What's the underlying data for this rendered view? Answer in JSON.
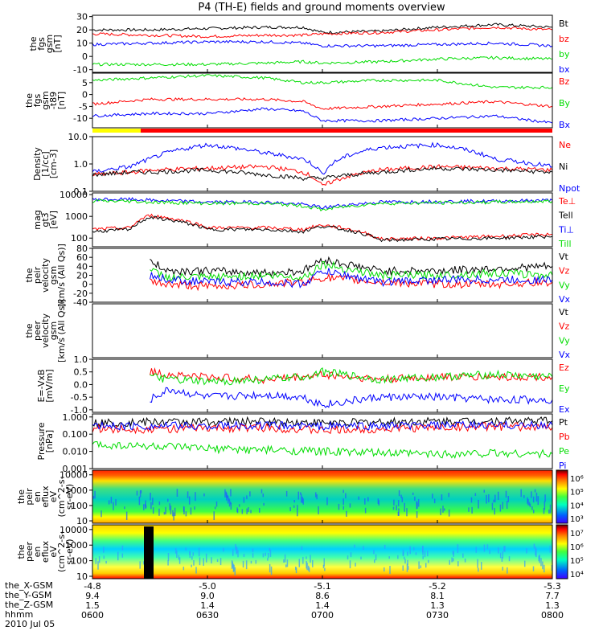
{
  "title": "P4 (TH-E) fields and ground moments overview",
  "date": "2010 Jul 05",
  "xaxis": {
    "row_labels": [
      "the_X-GSM",
      "the_Y-GSM",
      "the_Z-GSM",
      "hhmm"
    ],
    "ticks": [
      {
        "x": "-4.8",
        "y": "9.4",
        "z": "1.5",
        "t": "0600"
      },
      {
        "x": "-5.0",
        "y": "9.0",
        "z": "1.4",
        "t": "0630"
      },
      {
        "x": "-5.1",
        "y": "8.6",
        "z": "1.4",
        "t": "0700"
      },
      {
        "x": "-5.2",
        "y": "8.1",
        "z": "1.3",
        "t": "0730"
      },
      {
        "x": "-5.3",
        "y": "7.7",
        "z": "1.3",
        "t": "0800"
      }
    ]
  },
  "colors": {
    "black": "#000000",
    "red": "#ff0000",
    "green": "#00dd00",
    "blue": "#0000ff",
    "yellow": "#ffff00"
  },
  "chart_data": [
    {
      "type": "line",
      "ylabel": [
        "the",
        "fgs",
        "gsm",
        "[nT]"
      ],
      "yticks": [
        "30",
        "20",
        "10",
        "0",
        "-10"
      ],
      "ylim": [
        -12,
        31
      ],
      "x": [
        "0600",
        "0615",
        "0630",
        "0645",
        "0655",
        "0700",
        "0715",
        "0730",
        "0745",
        "0800"
      ],
      "series": [
        {
          "name": "Bt",
          "color": "#000000",
          "values": [
            20,
            20,
            21,
            22,
            22,
            18,
            19,
            22,
            24,
            22
          ]
        },
        {
          "name": "bz",
          "color": "#ff0000",
          "values": [
            17,
            16,
            15,
            16,
            16,
            17,
            18,
            20,
            22,
            20
          ]
        },
        {
          "name": "by",
          "color": "#00dd00",
          "values": [
            -6,
            -6,
            -6,
            -5,
            -4,
            -5,
            -4,
            -2,
            -1,
            -2
          ]
        },
        {
          "name": "bx",
          "color": "#0000ff",
          "values": [
            9,
            10,
            11,
            11,
            10,
            8,
            8,
            9,
            10,
            8
          ]
        }
      ]
    },
    {
      "type": "line",
      "ylabel": [
        "the",
        "fgs",
        "gsm",
        "-t89",
        "[nT]"
      ],
      "yticks": [
        "5",
        "0",
        "-5",
        "-10"
      ],
      "ylim": [
        -14,
        9
      ],
      "x": [
        "0600",
        "0615",
        "0630",
        "0645",
        "0655",
        "0700",
        "0715",
        "0730",
        "0745",
        "0800"
      ],
      "series": [
        {
          "name": "Bz",
          "color": "#ff0000",
          "values": [
            -4,
            -2,
            -2,
            -2,
            -3,
            -6,
            -5,
            -4,
            -3,
            -5
          ]
        },
        {
          "name": "By",
          "color": "#00dd00",
          "values": [
            6,
            7,
            8,
            7,
            5,
            5,
            6,
            6,
            3,
            3
          ]
        },
        {
          "name": "Bx",
          "color": "#0000ff",
          "values": [
            -9,
            -8,
            -8,
            -6,
            -7,
            -11,
            -11,
            -10,
            -9,
            -12
          ]
        }
      ]
    },
    {
      "type": "line",
      "log": true,
      "ylabel": [
        "Density",
        "[1/cc]",
        "[cm-3]"
      ],
      "yticks": [
        "10.0",
        "1.0",
        "0.1"
      ],
      "ylim": [
        0.1,
        10
      ],
      "x": [
        "0600",
        "0610",
        "0615",
        "0630",
        "0645",
        "0655",
        "0700",
        "0715",
        "0730",
        "0745",
        "0800"
      ],
      "series": [
        {
          "name": "Ne",
          "color": "#ff0000",
          "values": [
            0.4,
            0.5,
            0.6,
            0.7,
            0.8,
            0.5,
            0.15,
            0.6,
            0.8,
            0.7,
            0.6
          ]
        },
        {
          "name": "Ni",
          "color": "#000000",
          "values": [
            0.4,
            0.5,
            0.5,
            0.6,
            0.4,
            0.3,
            0.3,
            0.5,
            0.7,
            0.6,
            0.5
          ]
        },
        {
          "name": "Npot",
          "color": "#0000ff",
          "values": [
            0.5,
            0.8,
            1.5,
            5,
            2.5,
            1.5,
            0.4,
            4,
            5,
            1.5,
            0.8
          ]
        }
      ]
    },
    {
      "type": "line",
      "log": true,
      "ylabel": [
        "mag",
        "gt3",
        "[eV]"
      ],
      "yticks": [
        "10000",
        "1000",
        "100"
      ],
      "ylim": [
        40,
        12000
      ],
      "x": [
        "0600",
        "0610",
        "0615",
        "0630",
        "0645",
        "0655",
        "0700",
        "0715",
        "0730",
        "0745",
        "0800"
      ],
      "series": [
        {
          "name": "Te⊥",
          "color": "#ff0000",
          "values": [
            250,
            300,
            1100,
            300,
            300,
            250,
            400,
            90,
            100,
            120,
            150
          ]
        },
        {
          "name": "Tell",
          "color": "#000000",
          "values": [
            200,
            250,
            900,
            250,
            250,
            200,
            350,
            80,
            90,
            100,
            120
          ]
        },
        {
          "name": "Ti⊥",
          "color": "#0000ff",
          "values": [
            6000,
            6000,
            5500,
            4500,
            4500,
            3500,
            2500,
            4500,
            4800,
            5000,
            5500
          ]
        },
        {
          "name": "Till",
          "color": "#00dd00",
          "values": [
            5000,
            5000,
            4500,
            4000,
            4000,
            3000,
            2000,
            4000,
            4200,
            4500,
            5000
          ]
        }
      ]
    },
    {
      "type": "line",
      "ylabel": [
        "the",
        "peir",
        "velocity",
        "gsm",
        "[km/s (All Qs)]"
      ],
      "yticks": [
        "80",
        "60",
        "40",
        "20",
        "0",
        "-20",
        "-40"
      ],
      "ylim": [
        -40,
        80
      ],
      "x": [
        "0615",
        "0620",
        "0630",
        "0645",
        "0655",
        "0700",
        "0715",
        "0730",
        "0745",
        "0800"
      ],
      "series": [
        {
          "name": "Vt",
          "color": "#000000",
          "values": [
            50,
            30,
            30,
            25,
            30,
            55,
            30,
            30,
            35,
            40
          ]
        },
        {
          "name": "Vz",
          "color": "#ff0000",
          "values": [
            5,
            0,
            -5,
            0,
            5,
            15,
            5,
            0,
            0,
            5
          ]
        },
        {
          "name": "Vy",
          "color": "#00dd00",
          "values": [
            30,
            15,
            15,
            20,
            15,
            45,
            20,
            20,
            25,
            20
          ]
        },
        {
          "name": "Vx",
          "color": "#0000ff",
          "values": [
            20,
            10,
            5,
            5,
            0,
            30,
            5,
            10,
            10,
            10
          ]
        }
      ]
    },
    {
      "type": "line",
      "ylabel": [
        "the",
        "peer",
        "velocity",
        "gsm",
        "[km/s (All Qs)]"
      ],
      "yticks": [],
      "ylim": [
        0,
        1
      ],
      "x": [],
      "series": [
        {
          "name": "Vt",
          "color": "#000000",
          "values": []
        },
        {
          "name": "Vz",
          "color": "#ff0000",
          "values": []
        },
        {
          "name": "Vy",
          "color": "#00dd00",
          "values": []
        },
        {
          "name": "Vx",
          "color": "#0000ff",
          "values": []
        }
      ]
    },
    {
      "type": "line",
      "ylabel": [
        "E=-VxB",
        "[mV/m]"
      ],
      "yticks": [
        "1.0",
        "0.5",
        "0.0",
        "-0.5",
        "-1.0"
      ],
      "ylim": [
        -1.1,
        1.0
      ],
      "x": [
        "0615",
        "0620",
        "0630",
        "0645",
        "0655",
        "0700",
        "0715",
        "0730",
        "0745",
        "0800"
      ],
      "series": [
        {
          "name": "Ez",
          "color": "#ff0000",
          "values": [
            0.5,
            0.4,
            0.3,
            0.2,
            0.3,
            0.4,
            0.2,
            0.3,
            0.3,
            0.3
          ]
        },
        {
          "name": "Ey",
          "color": "#00dd00",
          "values": [
            0.3,
            0.2,
            0.1,
            0.2,
            0.3,
            0.5,
            0.2,
            0.3,
            0.4,
            0.3
          ]
        },
        {
          "name": "Ex",
          "color": "#0000ff",
          "values": [
            -0.6,
            -0.2,
            -0.5,
            -0.4,
            -0.5,
            -0.8,
            -0.5,
            -0.5,
            -0.6,
            -0.6
          ]
        }
      ]
    },
    {
      "type": "line",
      "log": true,
      "ylabel": [
        "Pressure",
        "[nPa]"
      ],
      "yticks": [
        "1.000",
        "0.100",
        "0.010",
        "0.001"
      ],
      "ylim": [
        0.001,
        1.5
      ],
      "x": [
        "0600",
        "0615",
        "0630",
        "0645",
        "0700",
        "0715",
        "0730",
        "0745",
        "0800"
      ],
      "series": [
        {
          "name": "Pt",
          "color": "#000000",
          "values": [
            0.45,
            0.5,
            0.52,
            0.55,
            0.45,
            0.5,
            0.55,
            0.6,
            0.6
          ]
        },
        {
          "name": "Pb",
          "color": "#ff0000",
          "values": [
            0.2,
            0.2,
            0.22,
            0.24,
            0.16,
            0.2,
            0.25,
            0.28,
            0.25
          ]
        },
        {
          "name": "Pe",
          "color": "#00dd00",
          "values": [
            0.025,
            0.02,
            0.014,
            0.012,
            0.01,
            0.008,
            0.007,
            0.008,
            0.007
          ]
        },
        {
          "name": "Pi",
          "color": "#0000ff",
          "values": [
            0.3,
            0.3,
            0.3,
            0.32,
            0.3,
            0.3,
            0.32,
            0.33,
            0.33
          ]
        }
      ]
    },
    {
      "type": "heatmap",
      "ylabel": [
        "the",
        "peir",
        "en",
        "eflux",
        "eV",
        "(cm^2-s-",
        "sr-eV)"
      ],
      "yticks": [
        "10000",
        "1000",
        "100",
        "10"
      ],
      "colorbar_ticks": [
        "10⁶",
        "10⁵",
        "10⁴",
        "10³"
      ]
    },
    {
      "type": "heatmap",
      "ylabel": [
        "the",
        "peer",
        "en",
        "eflux",
        "eV",
        "(cm^2-s-",
        "sr-eV)"
      ],
      "yticks": [
        "10000",
        "1000",
        "100",
        "10"
      ],
      "colorbar_ticks": [
        "10⁷",
        "10⁶",
        "10⁵",
        "10⁴"
      ]
    }
  ]
}
